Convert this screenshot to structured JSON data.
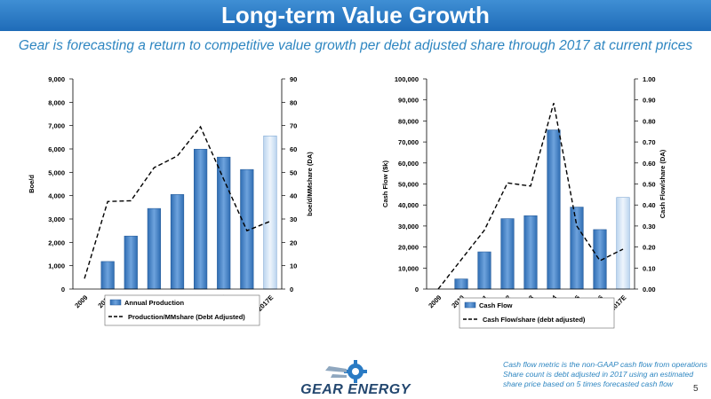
{
  "header": {
    "title": "Long-term Value Growth"
  },
  "subtitle": "Gear is forecasting a return to competitive value growth per debt adjusted share through 2017 at current prices",
  "colors": {
    "bar": "#4a86c8",
    "bar_estimate": "#d9e8f7",
    "banner": "#2a7bc4",
    "accent_text": "#2e86c1"
  },
  "chart_data": [
    {
      "type": "bar",
      "categories": [
        "2009",
        "2010",
        "2011",
        "2012",
        "2013",
        "2014",
        "2015",
        "2016",
        "2017E"
      ],
      "series": [
        {
          "name": "Annual Production",
          "type": "bar",
          "axis": "left",
          "values": [
            0,
            1180,
            2270,
            3450,
            4050,
            5990,
            5650,
            5120,
            6560
          ]
        },
        {
          "name": "Production/MMshare (Debt Adjusted)",
          "type": "line",
          "style": "dashed",
          "axis": "right",
          "values": [
            4.5,
            37.5,
            37.8,
            52,
            57,
            69.5,
            47,
            25,
            29
          ]
        }
      ],
      "estimate_category": "2017E",
      "ylabel": "Boe/d",
      "y2label": "boe/d/MMshare (DA)",
      "ylim": [
        0,
        9000
      ],
      "y2lim": [
        0,
        90
      ],
      "yticks": [
        "0",
        "1,000",
        "2,000",
        "3,000",
        "4,000",
        "5,000",
        "6,000",
        "7,000",
        "8,000",
        "9,000"
      ],
      "y2ticks": [
        "0",
        "10",
        "20",
        "30",
        "40",
        "50",
        "60",
        "70",
        "80",
        "90"
      ],
      "grid": false,
      "legend_position": "bottom"
    },
    {
      "type": "bar",
      "categories": [
        "2009",
        "2010",
        "2011",
        "2012",
        "2013",
        "2014",
        "2015",
        "2016",
        "2017E"
      ],
      "series": [
        {
          "name": "Cash Flow",
          "type": "bar",
          "axis": "left",
          "values": [
            0,
            4800,
            17700,
            33500,
            34900,
            75700,
            39000,
            28300,
            43600
          ]
        },
        {
          "name": "Cash Flow/share (debt adjusted)",
          "type": "line",
          "style": "dashed",
          "axis": "right",
          "values": [
            0,
            0.14,
            0.28,
            0.505,
            0.49,
            0.885,
            0.3,
            0.135,
            0.19
          ]
        }
      ],
      "estimate_category": "2017E",
      "ylabel": "Cash Flow ($k)",
      "y2label": "Cash Flow/share (DA)",
      "ylim": [
        0,
        100000
      ],
      "y2lim": [
        0,
        1.0
      ],
      "yticks": [
        "0",
        "10,000",
        "20,000",
        "30,000",
        "40,000",
        "50,000",
        "60,000",
        "70,000",
        "80,000",
        "90,000",
        "100,000"
      ],
      "y2ticks": [
        "0.00",
        "0.10",
        "0.20",
        "0.30",
        "0.40",
        "0.50",
        "0.60",
        "0.70",
        "0.80",
        "0.90",
        "1.00"
      ],
      "grid": false,
      "legend_position": "bottom"
    }
  ],
  "footnote": {
    "lines": [
      "Cash flow metric is the non-GAAP cash flow from operations",
      "Share count is debt adjusted in 2017 using an estimated",
      "share price based on 5 times forecasted cash flow"
    ]
  },
  "logo": {
    "text": "GEAR ENERGY"
  },
  "page_number": "5"
}
